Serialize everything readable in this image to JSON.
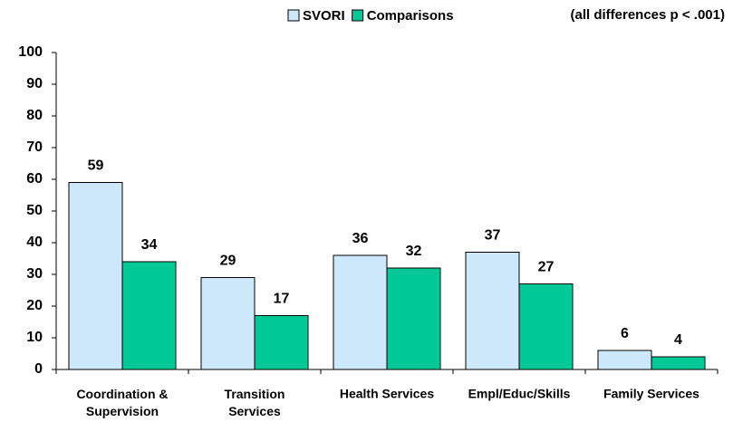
{
  "chart_data": {
    "type": "bar",
    "annotation": "(all differences p < .001)",
    "categories": [
      "Coordination &\nSupervision",
      "Transition\nServices",
      "Health Services",
      "Empl/Educ/Skills",
      "Family Services"
    ],
    "series": [
      {
        "name": "SVORI",
        "color": "#cce8fa",
        "values": [
          59,
          29,
          36,
          37,
          6
        ]
      },
      {
        "name": "Comparisons",
        "color": "#00c896",
        "values": [
          34,
          17,
          32,
          27,
          4
        ]
      }
    ],
    "ylim": [
      0,
      100
    ],
    "yticks": [
      0,
      10,
      20,
      30,
      40,
      50,
      60,
      70,
      80,
      90,
      100
    ],
    "grid": false
  }
}
